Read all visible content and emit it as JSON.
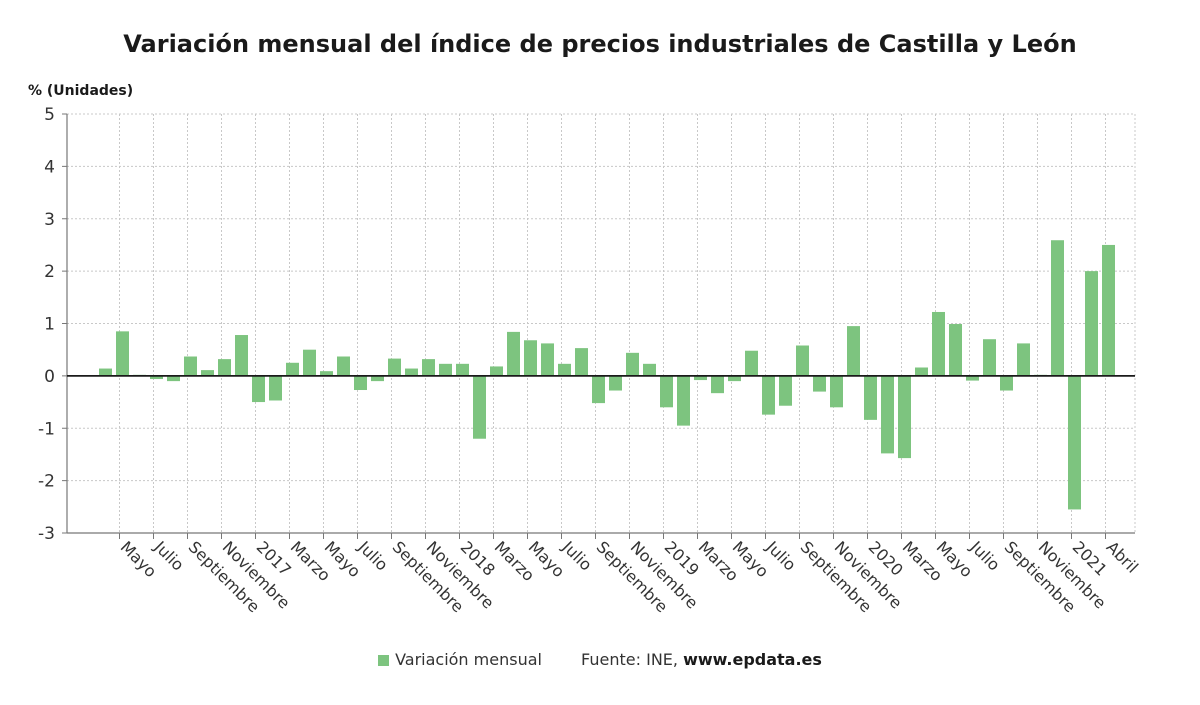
{
  "chart_data": {
    "type": "bar",
    "title": "Variación mensual del índice de precios industriales de Castilla y León",
    "y_unit_label": "% (Unidades)",
    "ylim": [
      -3,
      5
    ],
    "y_ticks": [
      -3,
      -2,
      -1,
      0,
      1,
      2,
      3,
      4,
      5
    ],
    "grid": true,
    "legend_position": "bottom",
    "x_tick_labels": [
      "Mayo",
      "Julio",
      "Septiembre",
      "Noviembre",
      "2017",
      "Marzo",
      "Mayo",
      "Julio",
      "Septiembre",
      "Noviembre",
      "2018",
      "Marzo",
      "Mayo",
      "Julio",
      "Septiembre",
      "Noviembre",
      "2019",
      "Marzo",
      "Mayo",
      "Julio",
      "Septiembre",
      "Noviembre",
      "2020",
      "Marzo",
      "Mayo",
      "Julio",
      "Septiembre",
      "Noviembre",
      "2021",
      "Abril"
    ],
    "series": [
      {
        "name": "Variación mensual",
        "color": "#7dc47f",
        "values": [
          0.14,
          0.85,
          0.02,
          -0.06,
          -0.1,
          0.37,
          0.11,
          0.32,
          0.78,
          -0.5,
          -0.47,
          0.25,
          0.5,
          0.09,
          0.37,
          -0.27,
          -0.1,
          0.33,
          0.14,
          0.32,
          0.23,
          0.23,
          -1.2,
          0.18,
          0.84,
          0.68,
          0.62,
          0.23,
          0.53,
          -0.52,
          -0.28,
          0.44,
          0.23,
          -0.6,
          -0.95,
          -0.08,
          -0.33,
          -0.1,
          0.48,
          -0.74,
          -0.57,
          0.58,
          -0.3,
          -0.6,
          0.95,
          -0.84,
          -1.48,
          -1.57,
          0.16,
          1.22,
          0.99,
          -0.09,
          0.7,
          -0.28,
          0.62,
          0.02,
          2.59,
          -2.55,
          2.0,
          2.5
        ]
      }
    ]
  },
  "legend": {
    "series_label": "Variación mensual",
    "source_prefix": "Fuente: INE,",
    "source_site": "www.epdata.es"
  }
}
